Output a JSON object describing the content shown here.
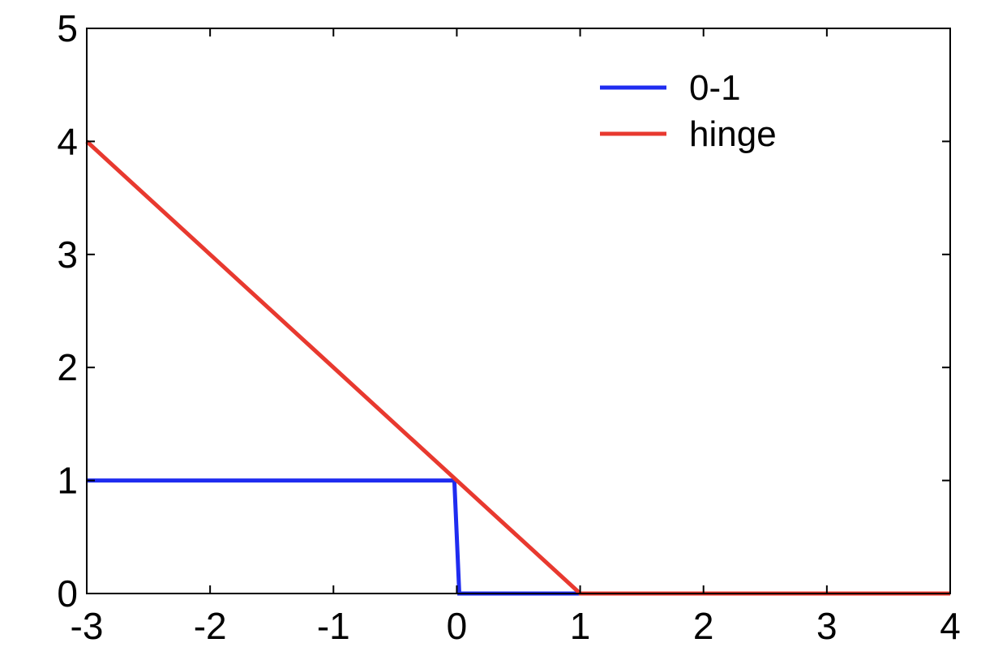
{
  "chart_data": {
    "type": "line",
    "title": "",
    "xlabel": "",
    "ylabel": "",
    "xlim": [
      -3,
      4
    ],
    "ylim": [
      0,
      5
    ],
    "x_ticks": [
      -3,
      -2,
      -1,
      0,
      1,
      2,
      3,
      4
    ],
    "x_tick_labels": [
      "-3",
      "-2",
      "-1",
      "0",
      "1",
      "2",
      "3",
      "4"
    ],
    "y_ticks": [
      0,
      1,
      2,
      3,
      4,
      5
    ],
    "y_tick_labels": [
      "0",
      "1",
      "2",
      "3",
      "4",
      "5"
    ],
    "grid": false,
    "legend_placement": "top-right",
    "series": [
      {
        "name": "0-1",
        "color": "#1f2cf0",
        "points": [
          [
            -3,
            1
          ],
          [
            -0.02,
            1
          ],
          [
            0.02,
            0
          ],
          [
            1,
            0
          ]
        ]
      },
      {
        "name": "hinge",
        "color": "#e8392f",
        "points": [
          [
            -3,
            4
          ],
          [
            1,
            0
          ],
          [
            4,
            0
          ]
        ]
      }
    ]
  }
}
